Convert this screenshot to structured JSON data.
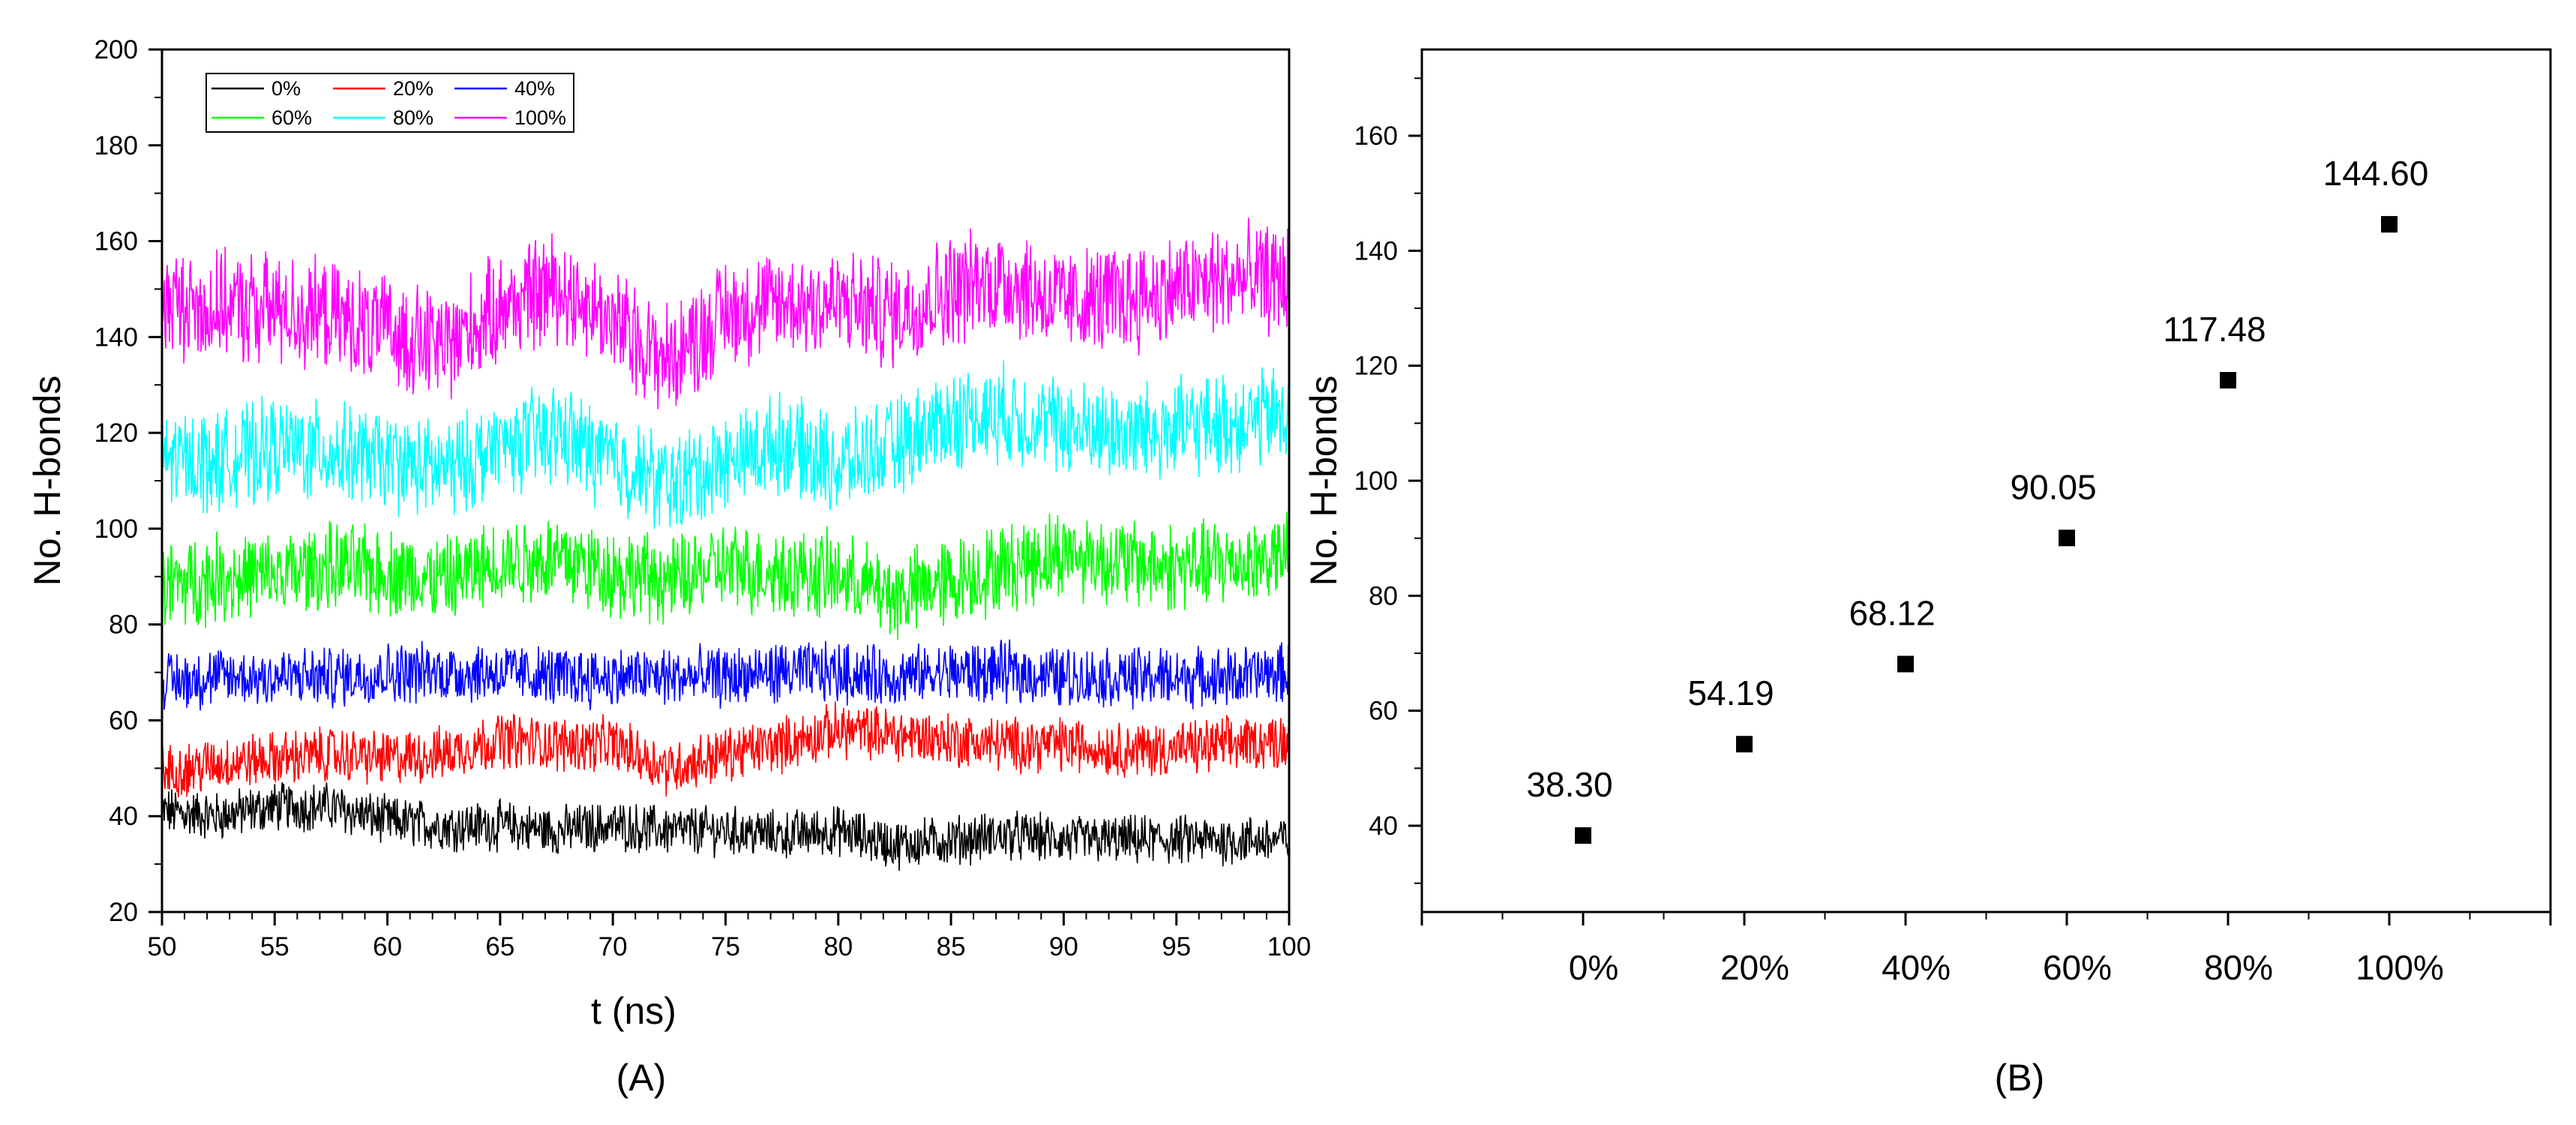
{
  "chart_data": [
    {
      "panel": "(A)",
      "type": "line",
      "xlabel": "t (ns)",
      "ylabel": "No. H-bonds",
      "xlim": [
        50,
        100
      ],
      "ylim": [
        20,
        200
      ],
      "x_ticks": [
        50,
        55,
        60,
        65,
        70,
        75,
        80,
        85,
        90,
        95,
        100
      ],
      "y_ticks": [
        20,
        40,
        60,
        80,
        100,
        120,
        140,
        160,
        180,
        200
      ],
      "legend_position": "top-left",
      "legend_columns": 3,
      "x": [
        50,
        52.5,
        55,
        57.5,
        60,
        62.5,
        65,
        67.5,
        70,
        72.5,
        75,
        77.5,
        80,
        82.5,
        85,
        87.5,
        90,
        92.5,
        95,
        97.5,
        100
      ],
      "series": [
        {
          "name": "0%",
          "color": "#000000",
          "values": [
            41,
            40,
            42,
            42,
            39,
            38,
            38,
            37,
            38,
            37,
            37,
            36,
            37,
            34,
            35,
            36,
            35,
            35,
            35,
            35,
            35
          ]
        },
        {
          "name": "20%",
          "color": "#ff0000",
          "values": [
            49,
            51,
            52,
            53,
            52,
            53,
            56,
            55,
            55,
            50,
            53,
            55,
            58,
            57,
            56,
            55,
            55,
            54,
            54,
            55,
            56
          ]
        },
        {
          "name": "40%",
          "color": "#0000ff",
          "values": [
            68,
            69,
            69,
            69,
            70,
            70,
            70,
            69,
            69,
            69,
            69,
            70,
            70,
            69,
            70,
            70,
            69,
            69,
            69,
            69,
            70
          ]
        },
        {
          "name": "60%",
          "color": "#00ff00",
          "values": [
            88,
            90,
            90,
            92,
            91,
            89,
            93,
            94,
            91,
            89,
            92,
            91,
            90,
            86,
            89,
            92,
            95,
            93,
            92,
            93,
            94
          ]
        },
        {
          "name": "80%",
          "color": "#00ffff",
          "values": [
            115,
            114,
            117,
            116,
            114,
            112,
            117,
            120,
            114,
            109,
            114,
            118,
            113,
            117,
            123,
            124,
            121,
            120,
            121,
            122,
            124
          ]
        },
        {
          "name": "100%",
          "color": "#ff00ff",
          "values": [
            147,
            146,
            146,
            144,
            141,
            138,
            146,
            151,
            143,
            135,
            145,
            147,
            147,
            145,
            150,
            152,
            147,
            148,
            150,
            152,
            152
          ]
        }
      ]
    },
    {
      "panel": "(B)",
      "type": "scatter",
      "ylabel": "No. H-bonds",
      "ylim": [
        25,
        175
      ],
      "y_ticks": [
        40,
        60,
        80,
        100,
        120,
        140,
        160
      ],
      "categories": [
        "0%",
        "20%",
        "40%",
        "60%",
        "80%",
        "100%"
      ],
      "values": [
        38.3,
        54.19,
        68.12,
        90.05,
        117.48,
        144.6
      ],
      "data_labels": [
        "38.30",
        "54.19",
        "68.12",
        "90.05",
        "117.48",
        "144.60"
      ],
      "marker": "square",
      "marker_color": "#000000"
    }
  ]
}
